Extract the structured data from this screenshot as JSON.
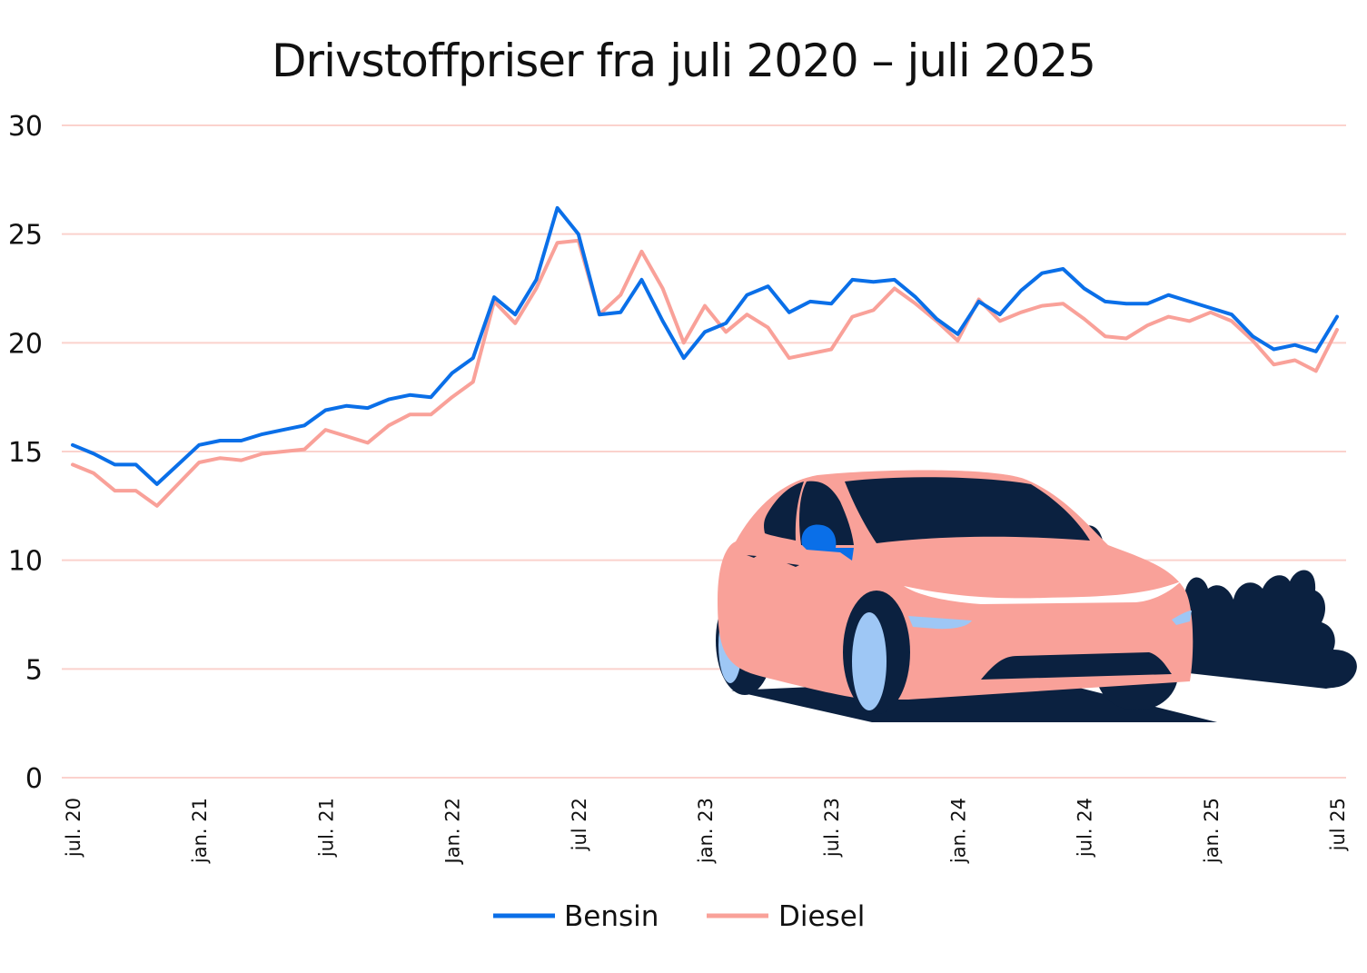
{
  "chart_data": {
    "type": "line",
    "title": "Drivstoffpriser fra juli 2020 – juli 2025",
    "xlabel": "",
    "ylabel": "",
    "ylim": [
      0,
      30
    ],
    "yticks": [
      0,
      5,
      10,
      15,
      20,
      25,
      30
    ],
    "grid": true,
    "legend_position": "bottom",
    "x": [
      "2020-07",
      "2020-08",
      "2020-09",
      "2020-10",
      "2020-11",
      "2020-12",
      "2021-01",
      "2021-02",
      "2021-03",
      "2021-04",
      "2021-05",
      "2021-06",
      "2021-07",
      "2021-08",
      "2021-09",
      "2021-10",
      "2021-11",
      "2021-12",
      "2022-01",
      "2022-02",
      "2022-03",
      "2022-04",
      "2022-05",
      "2022-06",
      "2022-07",
      "2022-08",
      "2022-09",
      "2022-10",
      "2022-11",
      "2022-12",
      "2023-01",
      "2023-02",
      "2023-03",
      "2023-04",
      "2023-05",
      "2023-06",
      "2023-07",
      "2023-08",
      "2023-09",
      "2023-10",
      "2023-11",
      "2023-12",
      "2024-01",
      "2024-02",
      "2024-03",
      "2024-04",
      "2024-05",
      "2024-06",
      "2024-07",
      "2024-08",
      "2024-09",
      "2024-10",
      "2024-11",
      "2024-12",
      "2025-01",
      "2025-02",
      "2025-03",
      "2025-04",
      "2025-05",
      "2025-06",
      "2025-07"
    ],
    "x_tick_labels": [
      "jul. 20",
      "jan. 21",
      "jul. 21",
      "Jan. 22",
      "jul 22",
      "jan. 23",
      "jul. 23",
      "jan. 24",
      "jul. 24",
      "jan. 25",
      "jul 25"
    ],
    "series": [
      {
        "name": "Bensin",
        "color": "#0a6fe8",
        "values": [
          15.3,
          14.9,
          14.4,
          14.4,
          13.5,
          14.4,
          15.3,
          15.5,
          15.5,
          15.8,
          16.0,
          16.2,
          16.9,
          17.1,
          17.0,
          17.4,
          17.6,
          17.5,
          18.6,
          19.3,
          22.1,
          21.3,
          22.9,
          26.2,
          25.0,
          21.3,
          21.4,
          22.9,
          21.0,
          19.3,
          20.5,
          20.9,
          22.2,
          22.6,
          21.4,
          21.9,
          21.8,
          22.9,
          22.8,
          22.9,
          22.1,
          21.1,
          20.4,
          21.9,
          21.3,
          22.4,
          23.2,
          23.4,
          22.5,
          21.9,
          21.8,
          21.8,
          22.2,
          21.9,
          21.6,
          21.3,
          20.3,
          19.7,
          19.9,
          19.6,
          21.2
        ]
      },
      {
        "name": "Diesel",
        "color": "#f9a199",
        "values": [
          14.4,
          14.0,
          13.2,
          13.2,
          12.5,
          13.5,
          14.5,
          14.7,
          14.6,
          14.9,
          15.0,
          15.1,
          16.0,
          15.7,
          15.4,
          16.2,
          16.7,
          16.7,
          17.5,
          18.2,
          21.9,
          20.9,
          22.5,
          24.6,
          24.7,
          21.3,
          22.2,
          24.2,
          22.5,
          20.0,
          21.7,
          20.5,
          21.3,
          20.7,
          19.3,
          19.5,
          19.7,
          21.2,
          21.5,
          22.5,
          21.8,
          21.0,
          20.1,
          22.0,
          21.0,
          21.4,
          21.7,
          21.8,
          21.1,
          20.3,
          20.2,
          20.8,
          21.2,
          21.0,
          21.4,
          21.0,
          20.1,
          19.0,
          19.2,
          18.7,
          20.6
        ]
      }
    ]
  }
}
